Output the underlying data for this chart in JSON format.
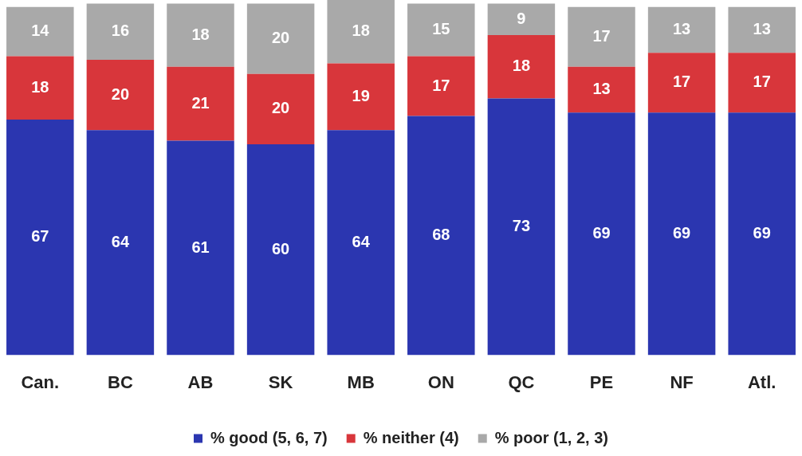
{
  "chart_data": {
    "type": "bar",
    "stacked": true,
    "data_labels": true,
    "legend": "bottom",
    "tick_labels": "x",
    "ylim": [
      0,
      101
    ],
    "categories": [
      "Can.",
      "BC",
      "AB",
      "SK",
      "MB",
      "ON",
      "QC",
      "PE",
      "NF",
      "Atl."
    ],
    "series": [
      {
        "name": "% good (5, 6, 7)",
        "color": "#2b36b0",
        "values": [
          67,
          64,
          61,
          60,
          64,
          68,
          73,
          69,
          69,
          69
        ]
      },
      {
        "name": "% neither (4)",
        "color": "#d8363b",
        "values": [
          18,
          20,
          21,
          20,
          19,
          17,
          18,
          13,
          17,
          17
        ]
      },
      {
        "name": "% poor (1, 2, 3)",
        "color": "#a9a9a9",
        "values": [
          14,
          16,
          18,
          20,
          18,
          15,
          9,
          17,
          13,
          13
        ]
      }
    ]
  }
}
